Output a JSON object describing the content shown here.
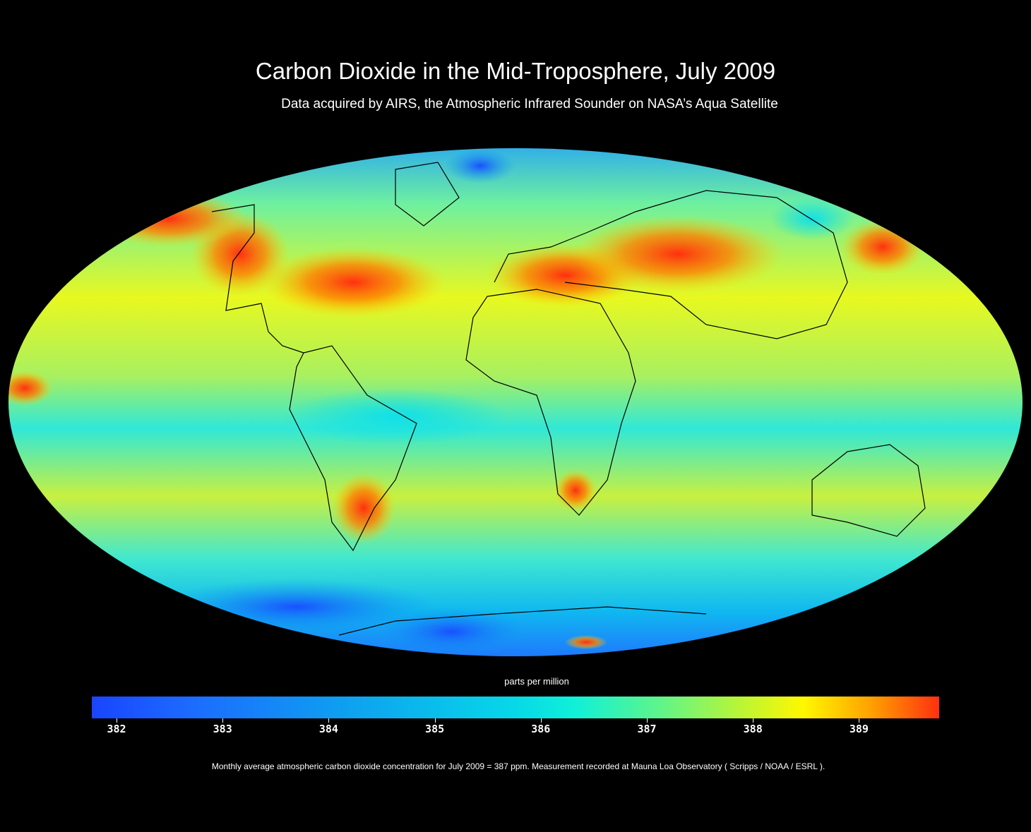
{
  "title": "Carbon Dioxide in the Mid-Troposphere, July 2009",
  "subtitle": "Data acquired by AIRS, the Atmospheric Infrared Sounder on NASA’s Aqua Satellite",
  "map": {
    "projection": "Mollweide",
    "colormap": "blue-cyan-green-yellow-red",
    "high_regions": [
      "North America",
      "North Atlantic",
      "Mediterranean / Middle East",
      "Central Asia",
      "Southern South America",
      "Southern Africa"
    ],
    "low_regions": [
      "Arctic",
      "Antarctica",
      "Southern Ocean"
    ]
  },
  "colorbar": {
    "label": "parts per million",
    "ticks": [
      "382",
      "383",
      "384",
      "385",
      "386",
      "387",
      "388",
      "389"
    ],
    "colors": [
      "#1a45ff",
      "#0ea0f0",
      "#07d8e8",
      "#5ef58a",
      "#fff800",
      "#ff3010"
    ]
  },
  "footnote": "Monthly average atmospheric carbon dioxide concentration for July 2009 = 387 ppm. Measurement recorded at Mauna Loa Observatory ( Scripps / NOAA / ESRL )."
}
